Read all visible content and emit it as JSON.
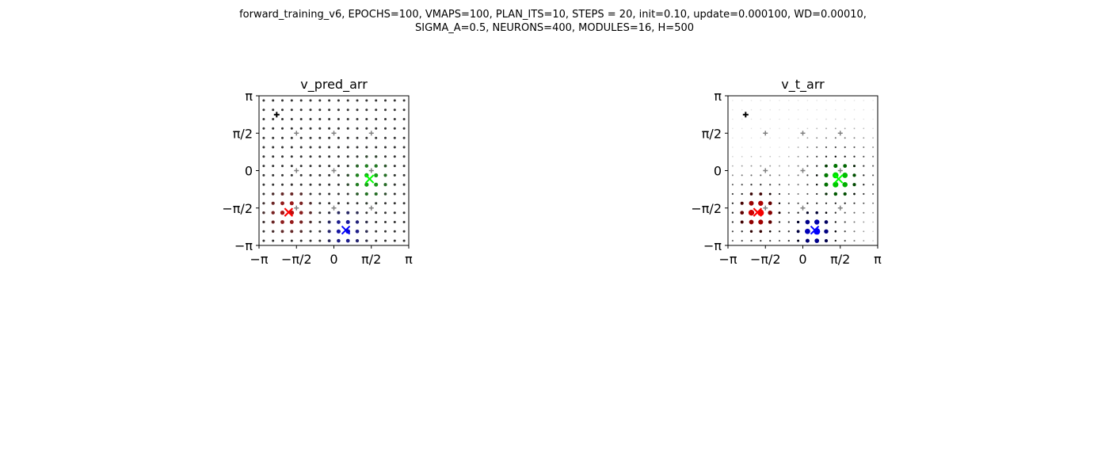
{
  "figure": {
    "suptitle_line1": "forward_training_v6, EPOCHS=100, VMAPS=100, PLAN_ITS=10, STEPS = 20, init=0.10, update=0.000100, WD=0.00010,",
    "suptitle_line2": "SIGMA_A=0.5, NEURONS=400, MODULES=16, H=500"
  },
  "chart_data": [
    {
      "type": "scatter",
      "title": "v_pred_arr",
      "xlabel": "",
      "ylabel": "",
      "xlim": [
        -3.1416,
        3.1416
      ],
      "ylim": [
        -3.1416,
        3.1416
      ],
      "xticks": [
        "−π",
        "−π/2",
        "0",
        "π/2",
        "π"
      ],
      "yticks": [
        "π",
        "π/2",
        "0",
        "−π/2",
        "−π"
      ],
      "grid": "16x16 point lattice over [−π, π]²",
      "background_point_color": "#333333",
      "gray_markers": {
        "color": "#808080",
        "points": [
          [
            -1.5708,
            1.5708
          ],
          [
            0,
            1.5708
          ],
          [
            1.5708,
            1.5708
          ],
          [
            -1.5708,
            0
          ],
          [
            0,
            0
          ],
          [
            1.5708,
            0
          ],
          [
            -1.5708,
            -1.5708
          ],
          [
            0,
            -1.5708
          ],
          [
            1.5708,
            -1.5708
          ]
        ]
      },
      "black_marker": {
        "color": "#000000",
        "point": [
          -2.4,
          2.35
        ]
      },
      "targets": [
        {
          "color": "#ff0000",
          "x": -1.9,
          "y": -1.75,
          "glow_radius": 1.2
        },
        {
          "color": "#00ff00",
          "x": 1.5,
          "y": -0.35,
          "glow_radius": 1.1
        },
        {
          "color": "#0000ff",
          "x": 0.5,
          "y": -2.5,
          "glow_radius": 1.1
        }
      ]
    },
    {
      "type": "scatter",
      "title": "v_t_arr",
      "xlabel": "",
      "ylabel": "",
      "xlim": [
        -3.1416,
        3.1416
      ],
      "ylim": [
        -3.1416,
        3.1416
      ],
      "xticks": [
        "−π",
        "−π/2",
        "0",
        "π/2",
        "π"
      ],
      "yticks": [
        "π",
        "π/2",
        "0",
        "−π/2",
        "−π"
      ],
      "grid": "16x16 point lattice over [−π, π]²",
      "background_point_color": "#aaaaaa",
      "gray_markers": {
        "color": "#808080",
        "points": [
          [
            -1.5708,
            1.5708
          ],
          [
            0,
            1.5708
          ],
          [
            1.5708,
            1.5708
          ],
          [
            -1.5708,
            0
          ],
          [
            0,
            0
          ],
          [
            1.5708,
            0
          ],
          [
            -1.5708,
            -1.5708
          ],
          [
            0,
            -1.5708
          ],
          [
            1.5708,
            -1.5708
          ]
        ]
      },
      "black_marker": {
        "color": "#000000",
        "point": [
          -2.4,
          2.35
        ]
      },
      "targets": [
        {
          "color": "#ff0000",
          "x": -1.9,
          "y": -1.75,
          "glow_radius": 1.0
        },
        {
          "color": "#00ff00",
          "x": 1.5,
          "y": -0.35,
          "glow_radius": 0.95
        },
        {
          "color": "#0000ff",
          "x": 0.5,
          "y": -2.5,
          "glow_radius": 0.9
        }
      ]
    }
  ]
}
